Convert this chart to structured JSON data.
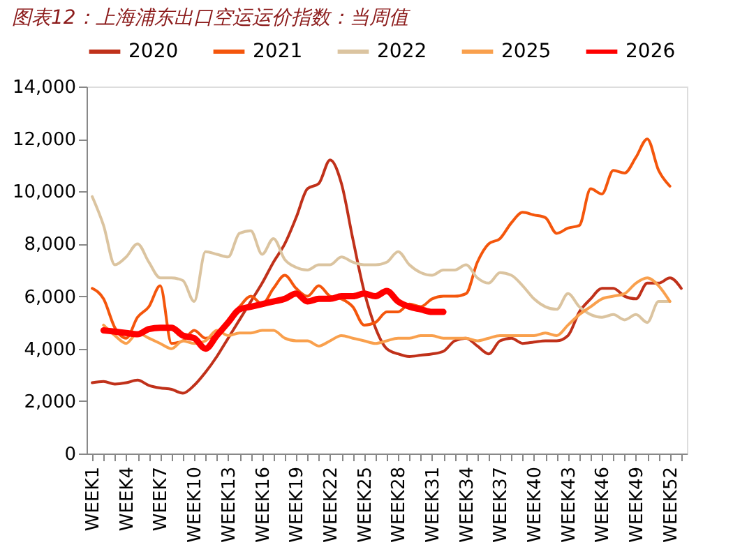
{
  "chart_data": {
    "type": "line",
    "title": "图表12：上海浦东出口空运运价指数：当周值",
    "categories": [
      "WEEK1",
      null,
      null,
      "WEEK4",
      null,
      null,
      "WEEK7",
      null,
      null,
      "WEEK10",
      null,
      null,
      "WEEK13",
      null,
      null,
      "WEEK16",
      null,
      null,
      "WEEK19",
      null,
      null,
      "WEEK22",
      null,
      null,
      "WEEK25",
      null,
      null,
      "WEEK28",
      null,
      null,
      "WEEK31",
      null,
      null,
      "WEEK34",
      null,
      null,
      "WEEK37",
      null,
      null,
      "WEEK40",
      null,
      null,
      "WEEK43",
      null,
      null,
      "WEEK46",
      null,
      null,
      "WEEK49",
      null,
      null,
      "WEEK52",
      null
    ],
    "series": [
      {
        "name": "2020",
        "color": "#c0311a",
        "values": [
          2700,
          2750,
          2650,
          2700,
          2800,
          2600,
          2500,
          2450,
          2300,
          2600,
          3100,
          3700,
          4400,
          5100,
          5800,
          6500,
          7300,
          8000,
          9000,
          10100,
          10300,
          11200,
          10300,
          8200,
          6200,
          4800,
          4000,
          3800,
          3700,
          3750,
          3800,
          3900,
          4300,
          4400,
          4100,
          3800,
          4300,
          4400,
          4200,
          4250,
          4300,
          4300,
          4500,
          5400,
          5900,
          6300,
          6300,
          6000,
          5900,
          6500,
          6500,
          6700,
          6300
        ]
      },
      {
        "name": "2021",
        "color": "#f4560c",
        "values": [
          6300,
          5900,
          4800,
          4400,
          5200,
          5600,
          6400,
          4200,
          4300,
          4700,
          4400,
          4500,
          5100,
          5600,
          6000,
          5700,
          6300,
          6800,
          6300,
          6000,
          6400,
          6000,
          5900,
          5600,
          4900,
          5000,
          5400,
          5400,
          5700,
          5600,
          5900,
          6000,
          6000,
          6100,
          7300,
          8000,
          8200,
          8800,
          9200,
          9100,
          9000,
          8400,
          8600,
          8700,
          10100,
          9900,
          10800,
          10700,
          11300,
          12000,
          10800,
          10200,
          null
        ]
      },
      {
        "name": "2022",
        "color": "#dbc4a0",
        "values": [
          9800,
          8700,
          7200,
          7500,
          8000,
          7300,
          6700,
          6700,
          6600,
          5800,
          7700,
          7600,
          7500,
          8400,
          8500,
          7600,
          8200,
          7400,
          7100,
          7000,
          7200,
          7200,
          7500,
          7300,
          7200,
          7200,
          7300,
          7700,
          7200,
          6900,
          6800,
          7000,
          7000,
          7200,
          6700,
          6500,
          6900,
          6800,
          6400,
          5900,
          5600,
          5500,
          6100,
          5600,
          5300,
          5200,
          5300,
          5100,
          5300,
          5000,
          5800,
          5800,
          null
        ]
      },
      {
        "name": "2025",
        "color": "#f9a04d",
        "values": [
          null,
          4900,
          4500,
          4200,
          4600,
          4400,
          4200,
          4000,
          4300,
          4200,
          4300,
          4700,
          4500,
          4600,
          4600,
          4700,
          4700,
          4400,
          4300,
          4300,
          4100,
          4300,
          4500,
          4400,
          4300,
          4200,
          4300,
          4400,
          4400,
          4500,
          4500,
          4400,
          4400,
          4400,
          4300,
          4400,
          4500,
          4500,
          4500,
          4500,
          4600,
          4500,
          4900,
          5300,
          5600,
          5900,
          6000,
          6100,
          6500,
          6700,
          6400,
          5800,
          null
        ]
      },
      {
        "name": "2026",
        "color": "#ff0000",
        "values": [
          null,
          4700,
          4650,
          4600,
          4550,
          4750,
          4800,
          4800,
          4500,
          4400,
          4000,
          4500,
          5000,
          5500,
          5600,
          5700,
          5800,
          5900,
          6100,
          5800,
          5900,
          5900,
          6000,
          6000,
          6100,
          6000,
          6200,
          5800,
          5600,
          5500,
          5400,
          5400,
          null,
          null,
          null,
          null,
          null,
          null,
          null,
          null,
          null,
          null,
          null,
          null,
          null,
          null,
          null,
          null,
          null,
          null,
          null,
          null,
          null
        ]
      }
    ],
    "ylim": [
      0,
      14000
    ],
    "yticks": [
      0,
      {
        "value": 2000,
        "label": "2,000"
      },
      {
        "value": 4000,
        "label": "4,000"
      },
      {
        "value": 6000,
        "label": "6,000"
      },
      {
        "value": 8000,
        "label": "8,000"
      },
      {
        "value": 10000,
        "label": "10,000"
      },
      {
        "value": 12000,
        "label": "12,000"
      },
      {
        "value": 14000,
        "label": "14,000"
      }
    ],
    "legend": "top",
    "grid": false,
    "line_style": "solid",
    "marker": "none"
  }
}
